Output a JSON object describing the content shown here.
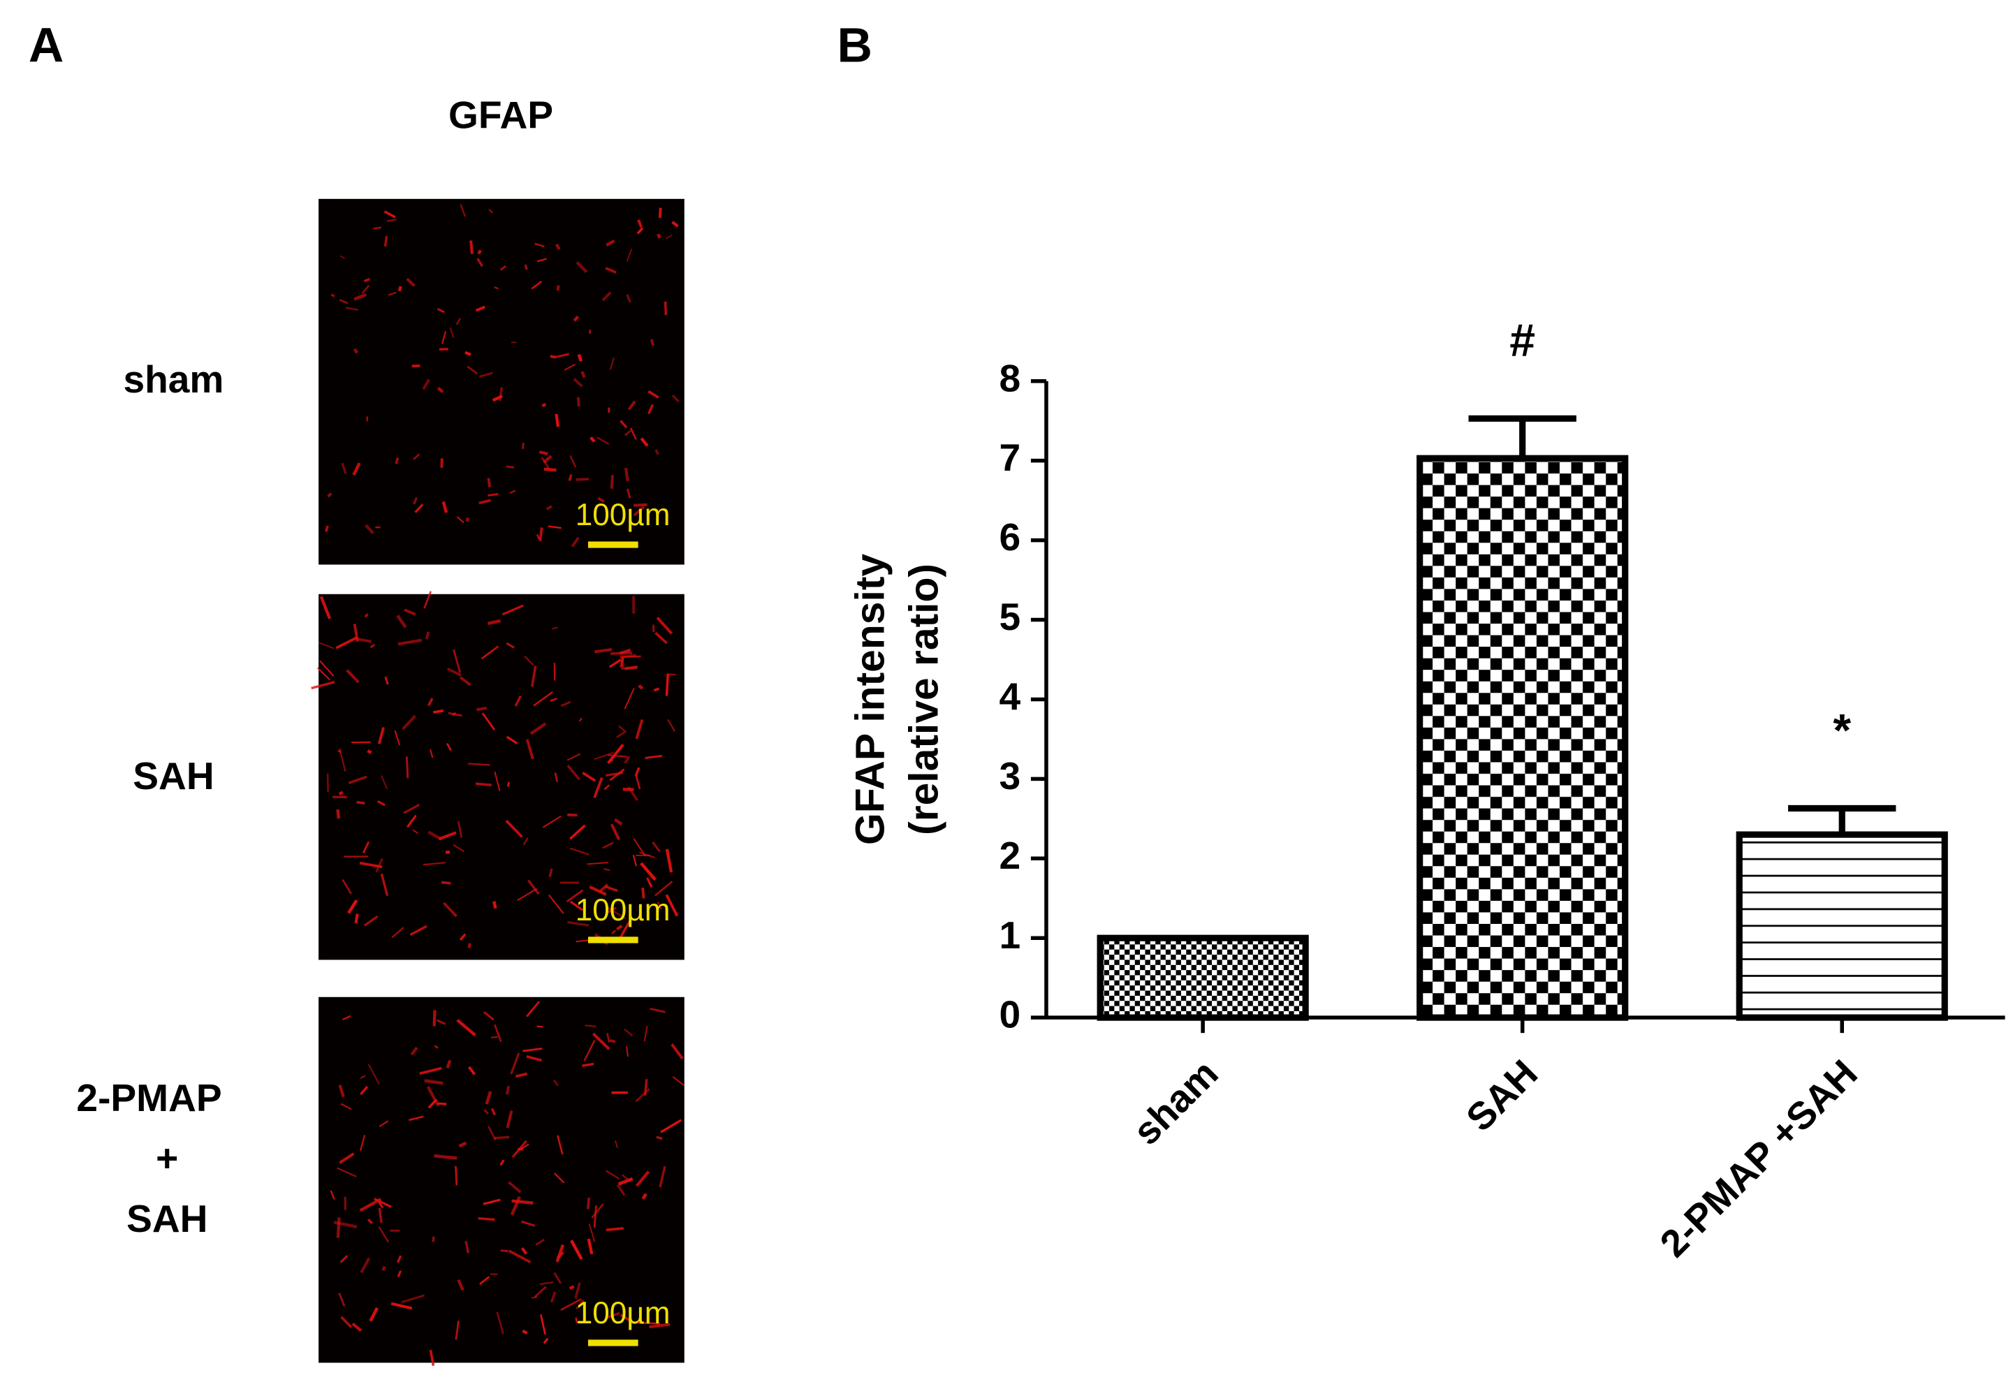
{
  "panel_labels": [
    "A",
    "B"
  ],
  "panel_a": {
    "title": "GFAP",
    "row_labels": [
      "sham",
      "SAH",
      "2-PMAP",
      "+",
      "SAH"
    ],
    "scale_bar_labels": [
      "100µm",
      "100µm",
      "100µm"
    ]
  },
  "chart_data": {
    "type": "bar",
    "y_label": [
      "GFAP intensity",
      "(relative ratio)"
    ],
    "categories": [
      "sham",
      "SAH",
      "2-PMAP +SAH"
    ],
    "values": [
      1,
      7.03,
      2.3
    ],
    "errors": [
      null,
      0.5,
      0.33
    ],
    "annotations": [
      null,
      "#",
      "*"
    ],
    "color": "#000000",
    "ylim": [
      0,
      8
    ],
    "yticks": [
      0,
      1,
      2,
      3,
      4,
      5,
      6,
      7,
      8
    ]
  }
}
